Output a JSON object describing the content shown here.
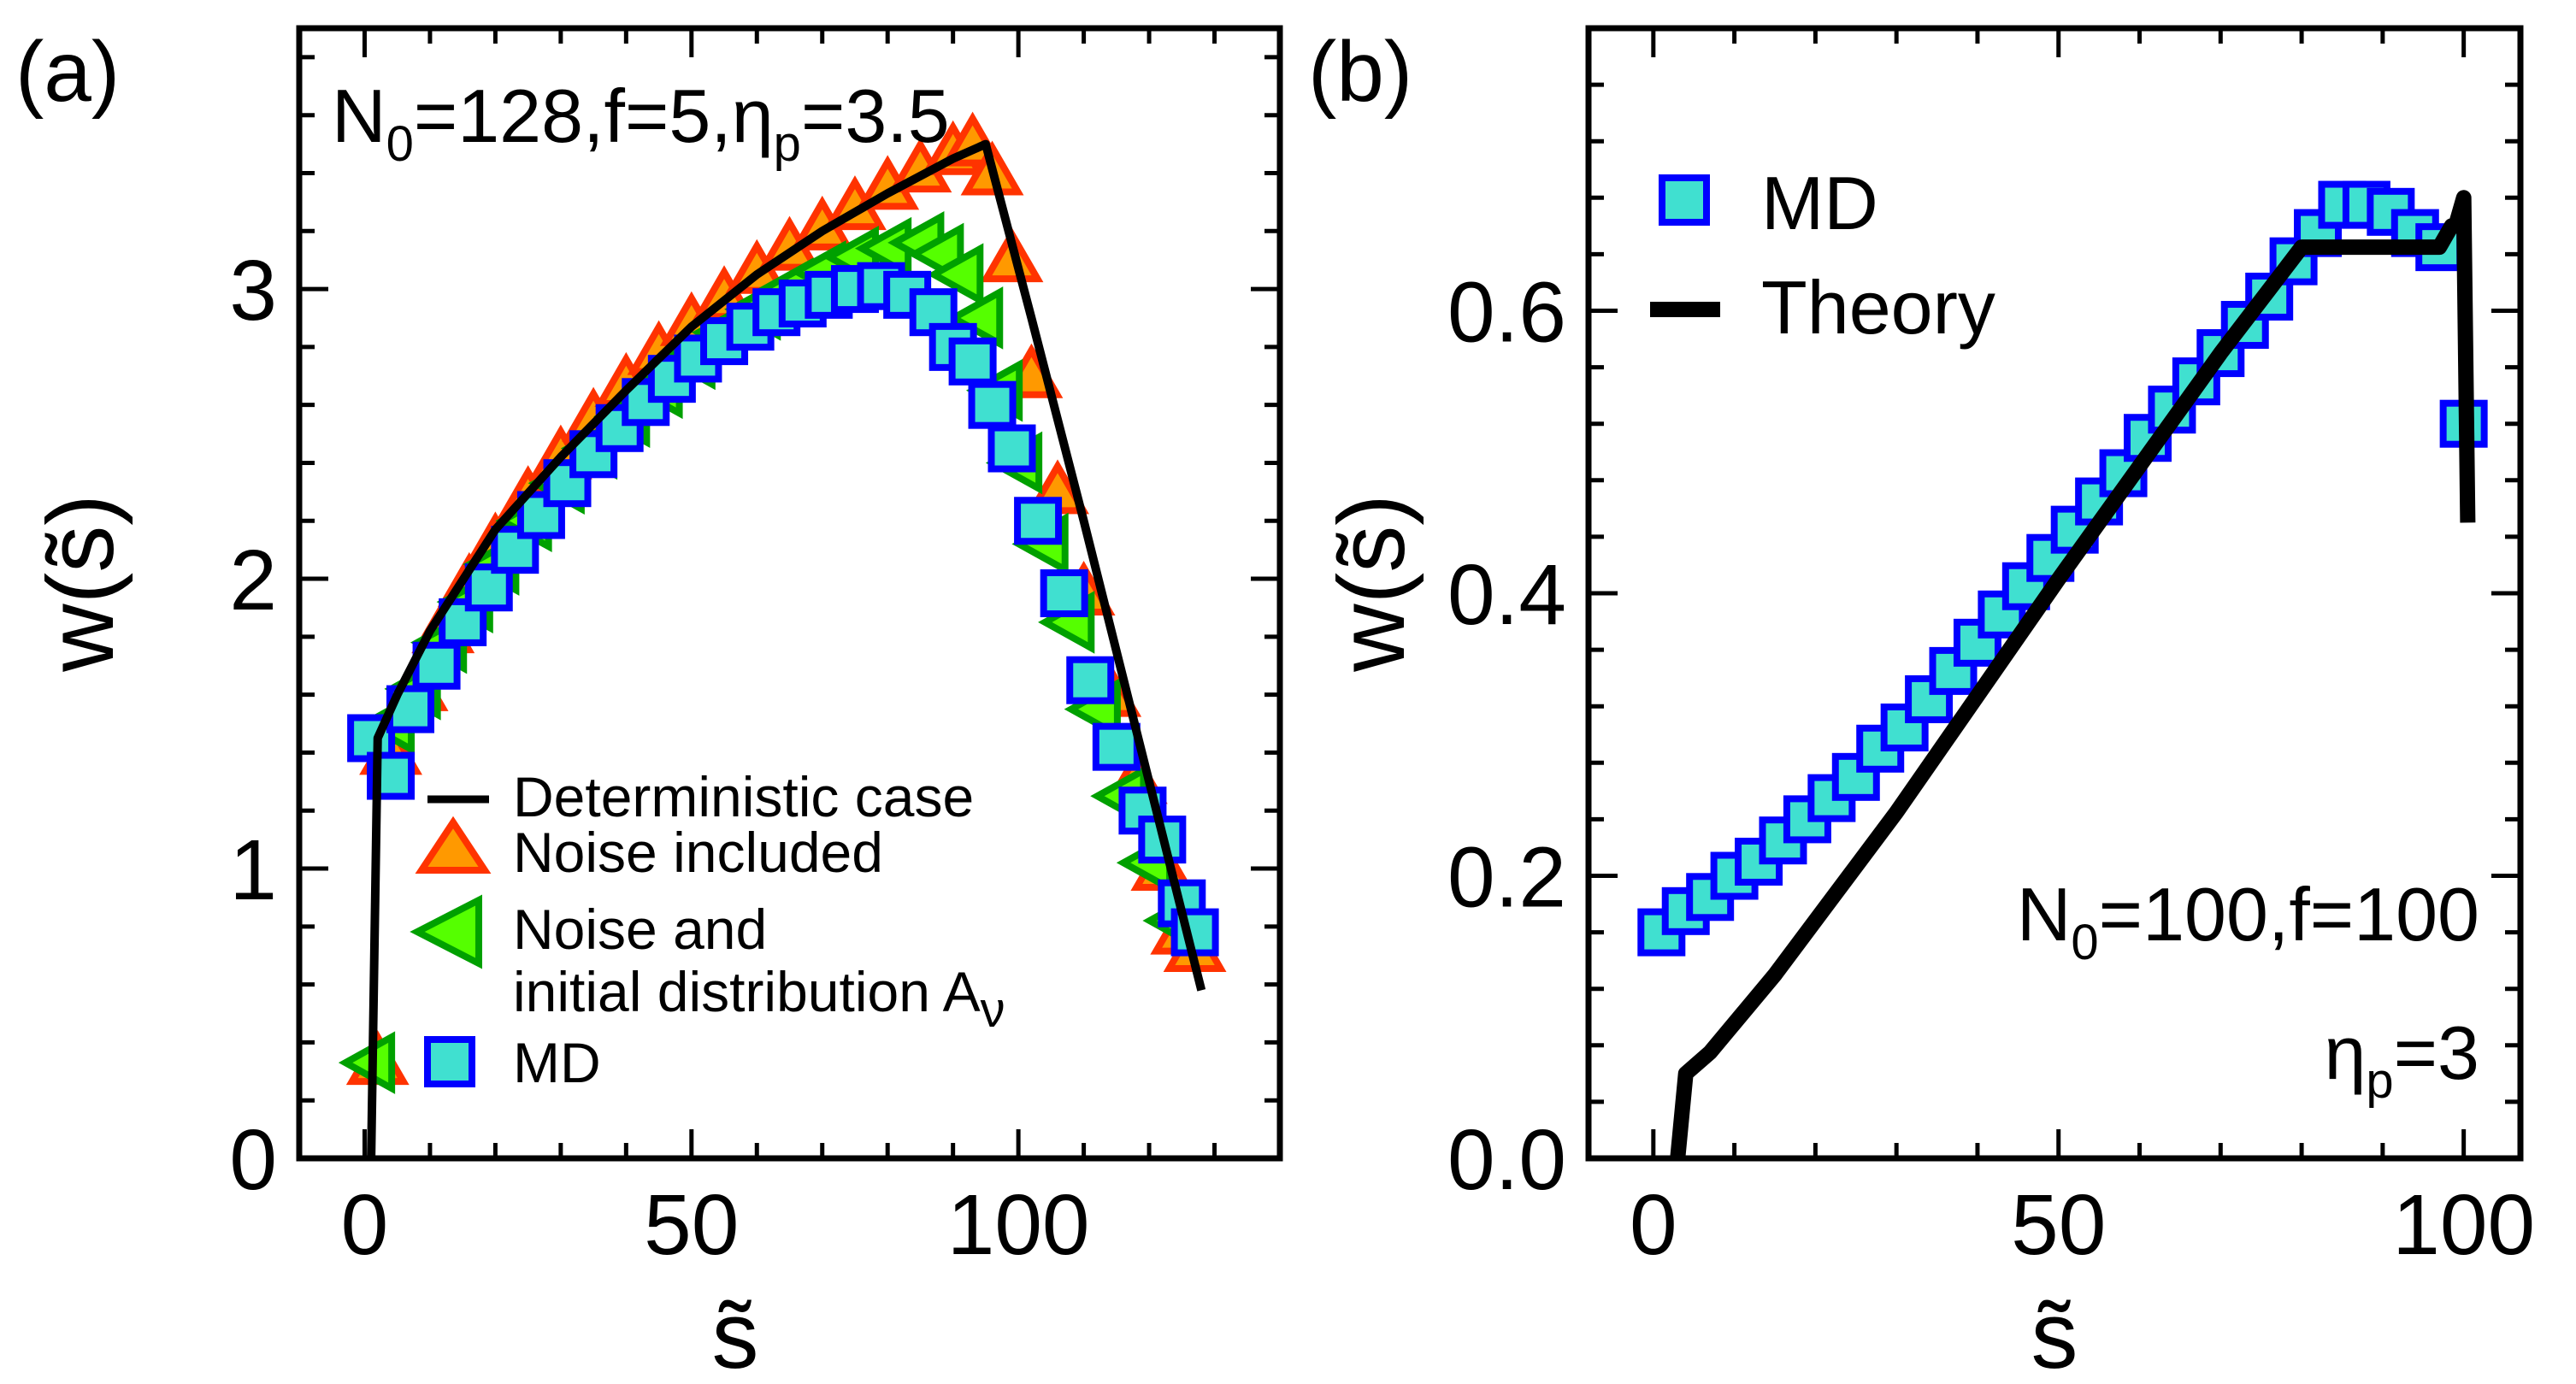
{
  "chart_data": [
    {
      "panel_label": "(a)",
      "type": "scatter",
      "xlabel": "s̃",
      "ylabel": "w(s̃)",
      "xlim": [
        -10,
        140
      ],
      "ylim": [
        0,
        3.9
      ],
      "xticks": [
        0,
        50,
        100
      ],
      "yticks": [
        0,
        1,
        2,
        3
      ],
      "xtick_labels": [
        "0",
        "50",
        "100"
      ],
      "ytick_labels": [
        "0",
        "1",
        "2",
        "3"
      ],
      "annotation": {
        "text": "N0=128,f=5,ηp=3.5",
        "p1": "N",
        "s1": "0",
        "p2": "=128,f=5,η",
        "s2": "p",
        "p3": "=3.5"
      },
      "legend": {
        "det": "Deterministic case",
        "noise": "Noise included",
        "noise_init_1": "Noise and",
        "noise_init_2": "initial distribution A",
        "noise_init_sub": "ν",
        "md": "MD"
      },
      "series": [
        {
          "name": "Deterministic case",
          "kind": "line",
          "color": "#000000",
          "x": [
            1,
            2,
            5,
            10,
            20,
            30,
            40,
            50,
            60,
            70,
            80,
            90,
            95,
            102,
            110,
            120,
            128
          ],
          "y": [
            0,
            1.45,
            1.6,
            1.82,
            2.17,
            2.42,
            2.65,
            2.87,
            3.05,
            3.2,
            3.33,
            3.45,
            3.5,
            2.9,
            2.2,
            1.3,
            0.58
          ]
        },
        {
          "name": "Noise included",
          "kind": "triangle-up",
          "color": "#ff3300",
          "fill": "#ff9900",
          "x": [
            2,
            4,
            8,
            12,
            16,
            20,
            25,
            30,
            35,
            40,
            45,
            50,
            55,
            60,
            65,
            70,
            75,
            80,
            85,
            90,
            93,
            96,
            99,
            102,
            106,
            110,
            114,
            118,
            122,
            125,
            127
          ],
          "y": [
            0.33,
            1.4,
            1.62,
            1.82,
            1.98,
            2.12,
            2.28,
            2.42,
            2.55,
            2.67,
            2.78,
            2.88,
            2.97,
            3.06,
            3.14,
            3.21,
            3.28,
            3.35,
            3.41,
            3.47,
            3.5,
            3.4,
            3.1,
            2.7,
            2.3,
            1.95,
            1.6,
            1.3,
            1.0,
            0.78,
            0.72
          ]
        },
        {
          "name": "Noise and initial distribution Aν",
          "kind": "triangle-left",
          "color": "#00a000",
          "fill": "#55ff00",
          "x": [
            1,
            4,
            8,
            12,
            16,
            20,
            25,
            30,
            35,
            40,
            45,
            50,
            55,
            60,
            65,
            70,
            75,
            80,
            85,
            88,
            91,
            94,
            97,
            100,
            104,
            108,
            112,
            116,
            120,
            124
          ],
          "y": [
            0.33,
            1.5,
            1.62,
            1.78,
            1.92,
            2.05,
            2.2,
            2.33,
            2.45,
            2.56,
            2.66,
            2.76,
            2.85,
            2.93,
            3.0,
            3.06,
            3.11,
            3.14,
            3.16,
            3.12,
            3.05,
            2.9,
            2.65,
            2.4,
            2.12,
            1.85,
            1.55,
            1.25,
            1.02,
            0.82
          ]
        },
        {
          "name": "MD",
          "kind": "square",
          "color": "#0000ff",
          "fill": "#40e0d0",
          "x": [
            1,
            4,
            7,
            11,
            15,
            19,
            23,
            27,
            31,
            35,
            39,
            43,
            47,
            51,
            55,
            59,
            63,
            67,
            71,
            75,
            79,
            83,
            87,
            90,
            93,
            96,
            99,
            103,
            107,
            111,
            115,
            119,
            122,
            125,
            127
          ],
          "y": [
            1.45,
            1.32,
            1.55,
            1.7,
            1.85,
            1.97,
            2.1,
            2.22,
            2.33,
            2.43,
            2.52,
            2.61,
            2.69,
            2.76,
            2.82,
            2.87,
            2.92,
            2.95,
            2.98,
            3.0,
            3.01,
            2.98,
            2.92,
            2.8,
            2.75,
            2.6,
            2.45,
            2.2,
            1.95,
            1.65,
            1.42,
            1.2,
            1.1,
            0.88,
            0.78
          ]
        }
      ]
    },
    {
      "panel_label": "(b)",
      "type": "scatter",
      "xlabel": "s̃",
      "ylabel": "w(s̃)",
      "xlim": [
        -8,
        107
      ],
      "ylim": [
        0,
        0.8
      ],
      "xticks": [
        0,
        50,
        100
      ],
      "yticks": [
        0.0,
        0.2,
        0.4,
        0.6
      ],
      "xtick_labels": [
        "0",
        "50",
        "100"
      ],
      "ytick_labels": [
        "0.0",
        "0.2",
        "0.4",
        "0.6"
      ],
      "annotation": {
        "line1_p1": "N",
        "line1_s1": "0",
        "line1_p2": "=100,f=100",
        "line2_p1": "η",
        "line2_s1": "p",
        "line2_p2": "=3"
      },
      "legend": {
        "md": "MD",
        "theory": "Theory"
      },
      "series": [
        {
          "name": "MD",
          "kind": "square",
          "color": "#0000ff",
          "fill": "#40e0d0",
          "x": [
            1,
            4,
            7,
            10,
            13,
            16,
            19,
            22,
            25,
            28,
            31,
            34,
            37,
            40,
            43,
            46,
            49,
            52,
            55,
            58,
            61,
            64,
            67,
            70,
            73,
            76,
            79,
            82,
            85,
            88,
            91,
            94,
            97,
            100
          ],
          "y": [
            0.16,
            0.175,
            0.185,
            0.2,
            0.21,
            0.225,
            0.24,
            0.255,
            0.27,
            0.29,
            0.305,
            0.325,
            0.345,
            0.365,
            0.385,
            0.405,
            0.425,
            0.445,
            0.465,
            0.485,
            0.51,
            0.53,
            0.55,
            0.57,
            0.59,
            0.61,
            0.635,
            0.655,
            0.675,
            0.675,
            0.67,
            0.655,
            0.645,
            0.52
          ]
        },
        {
          "name": "Theory",
          "kind": "line",
          "color": "#000000",
          "x": [
            3,
            4,
            7,
            15,
            30,
            50,
            70,
            80,
            90,
            97,
            98.5,
            99,
            100,
            100.5
          ],
          "y": [
            0,
            0.06,
            0.075,
            0.13,
            0.245,
            0.41,
            0.57,
            0.645,
            0.645,
            0.645,
            0.66,
            0.66,
            0.68,
            0.45
          ]
        }
      ]
    }
  ]
}
